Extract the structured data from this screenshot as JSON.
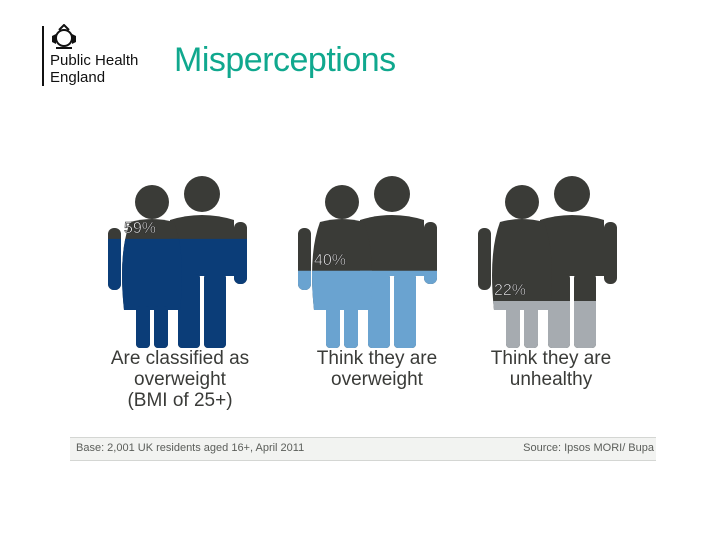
{
  "header": {
    "brand_line1": "Public Health",
    "brand_line2": "England",
    "title": "Misperceptions"
  },
  "chart_data": {
    "type": "bar",
    "categories": [
      "Are classified as overweight (BMI of 25+)",
      "Think they are overweight",
      "Think they are unhealthy"
    ],
    "values": [
      59,
      40,
      22
    ],
    "value_labels": [
      "59%",
      "40%",
      "22%"
    ],
    "category_lines": [
      [
        "Are classified as",
        "overweight",
        "(BMI of 25+)"
      ],
      [
        "Think they are",
        "overweight"
      ],
      [
        "Think they are",
        "unhealthy"
      ]
    ],
    "ylim": [
      0,
      100
    ],
    "colors": {
      "fill": [
        "#0b3d78",
        "#6aa3d0",
        "#a6abb0"
      ],
      "silhouette": "#3a3b37"
    }
  },
  "footer": {
    "base": "Base: 2,001 UK residents aged 16+, April 2011",
    "source": "Source: Ipsos MORI/ Bupa"
  },
  "colors": {
    "title": "#10a88e",
    "text": "#3a3b38"
  }
}
